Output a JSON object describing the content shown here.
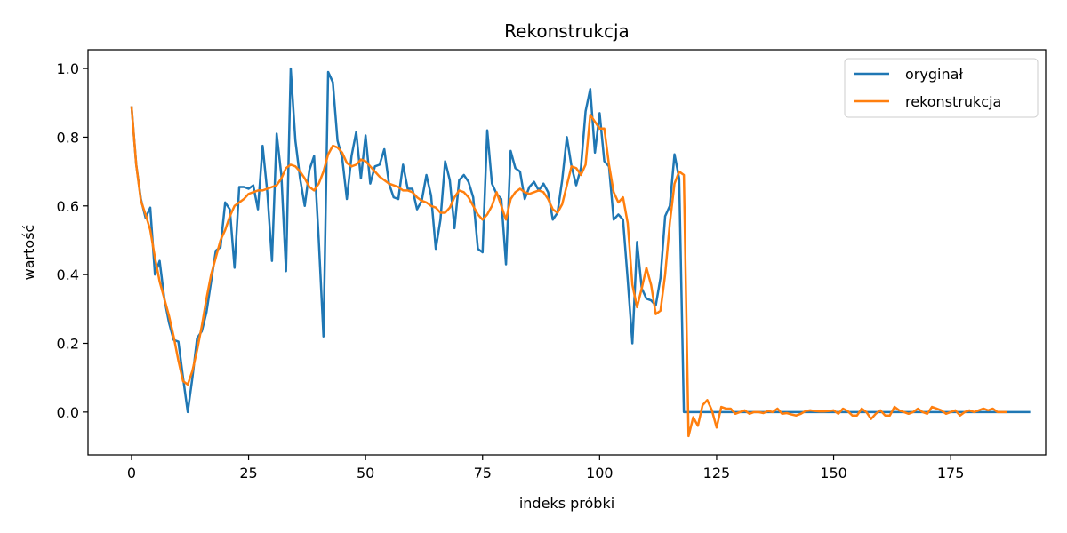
{
  "chart_data": {
    "type": "line",
    "title": "Rekonstrukcja",
    "xlabel": "indeks próbki",
    "ylabel": "wartość",
    "xlim": [
      -9.3,
      195.3
    ],
    "ylim": [
      -0.1245,
      1.0545
    ],
    "xticks": [
      0,
      25,
      50,
      75,
      100,
      125,
      150,
      175
    ],
    "yticks": [
      0.0,
      0.2,
      0.4,
      0.6,
      0.8,
      1.0
    ],
    "ytick_labels": [
      "0.0",
      "0.2",
      "0.4",
      "0.6",
      "0.8",
      "1.0"
    ],
    "grid": false,
    "legend": "top-right",
    "series": [
      {
        "name": "oryginał",
        "color": "#1f77b4",
        "values": [
          0.89,
          0.72,
          0.62,
          0.565,
          0.595,
          0.4,
          0.44,
          0.33,
          0.26,
          0.21,
          0.205,
          0.1,
          0.0,
          0.1,
          0.215,
          0.235,
          0.29,
          0.38,
          0.47,
          0.48,
          0.61,
          0.59,
          0.42,
          0.655,
          0.655,
          0.65,
          0.66,
          0.59,
          0.775,
          0.64,
          0.44,
          0.81,
          0.69,
          0.41,
          1.0,
          0.79,
          0.68,
          0.6,
          0.705,
          0.745,
          0.5,
          0.22,
          0.99,
          0.96,
          0.79,
          0.74,
          0.62,
          0.745,
          0.815,
          0.68,
          0.805,
          0.665,
          0.715,
          0.72,
          0.765,
          0.665,
          0.625,
          0.62,
          0.72,
          0.65,
          0.65,
          0.59,
          0.615,
          0.69,
          0.63,
          0.475,
          0.56,
          0.73,
          0.675,
          0.535,
          0.675,
          0.69,
          0.67,
          0.625,
          0.475,
          0.465,
          0.82,
          0.665,
          0.635,
          0.62,
          0.43,
          0.76,
          0.71,
          0.7,
          0.62,
          0.655,
          0.67,
          0.645,
          0.665,
          0.64,
          0.56,
          0.58,
          0.675,
          0.8,
          0.715,
          0.66,
          0.71,
          0.875,
          0.94,
          0.755,
          0.87,
          0.73,
          0.715,
          0.56,
          0.575,
          0.56,
          0.385,
          0.2,
          0.495,
          0.36,
          0.33,
          0.325,
          0.31,
          0.39,
          0.57,
          0.6,
          0.75,
          0.68,
          0.0,
          0.0,
          0.0,
          0.0,
          0.0,
          0.0,
          0.0,
          0.0,
          0.0,
          0.0,
          0.0,
          0.0,
          0.0,
          0.0,
          0.0,
          0.0,
          0.0,
          0.0,
          0.0,
          0.0,
          0.0,
          0.0,
          0.0,
          0.0,
          0.0,
          0.0,
          0.0,
          0.0,
          0.0,
          0.0,
          0.0,
          0.0,
          0.0,
          0.0,
          0.0,
          0.0,
          0.0,
          0.0,
          0.0,
          0.0,
          0.0,
          0.0,
          0.0,
          0.0,
          0.0,
          0.0,
          0.0,
          0.0,
          0.0,
          0.0,
          0.0,
          0.0,
          0.0,
          0.0,
          0.0,
          0.0,
          0.0,
          0.0,
          0.0,
          0.0,
          0.0,
          0.0,
          0.0,
          0.0,
          0.0,
          0.0,
          0.0,
          0.0,
          0.0,
          0.0,
          0.0,
          0.0,
          0.0,
          0.0,
          0.0
        ]
      },
      {
        "name": "rekonstrukcja",
        "color": "#ff7f0e",
        "values": [
          0.89,
          0.72,
          0.615,
          0.575,
          0.53,
          0.45,
          0.38,
          0.33,
          0.28,
          0.22,
          0.15,
          0.09,
          0.08,
          0.12,
          0.18,
          0.25,
          0.33,
          0.4,
          0.45,
          0.5,
          0.53,
          0.57,
          0.6,
          0.61,
          0.62,
          0.635,
          0.64,
          0.645,
          0.645,
          0.65,
          0.655,
          0.66,
          0.68,
          0.71,
          0.72,
          0.715,
          0.7,
          0.68,
          0.655,
          0.645,
          0.665,
          0.7,
          0.75,
          0.775,
          0.77,
          0.755,
          0.725,
          0.715,
          0.72,
          0.735,
          0.73,
          0.715,
          0.7,
          0.685,
          0.675,
          0.665,
          0.66,
          0.655,
          0.645,
          0.645,
          0.64,
          0.625,
          0.615,
          0.61,
          0.6,
          0.595,
          0.58,
          0.58,
          0.595,
          0.625,
          0.645,
          0.64,
          0.625,
          0.6,
          0.575,
          0.56,
          0.575,
          0.6,
          0.64,
          0.6,
          0.56,
          0.62,
          0.64,
          0.65,
          0.64,
          0.635,
          0.64,
          0.645,
          0.64,
          0.62,
          0.59,
          0.58,
          0.605,
          0.66,
          0.715,
          0.71,
          0.69,
          0.72,
          0.865,
          0.845,
          0.825,
          0.825,
          0.72,
          0.64,
          0.61,
          0.625,
          0.55,
          0.37,
          0.305,
          0.36,
          0.42,
          0.37,
          0.285,
          0.295,
          0.4,
          0.55,
          0.665,
          0.7,
          0.69,
          -0.07,
          -0.015,
          -0.04,
          0.02,
          0.035,
          0.005,
          -0.045,
          0.015,
          0.01,
          0.01,
          -0.005,
          0.0,
          0.005,
          -0.005,
          0.0,
          0.0,
          -0.003,
          0.003,
          0.0,
          0.01,
          -0.005,
          -0.003,
          -0.007,
          -0.01,
          -0.005,
          0.003,
          0.005,
          0.003,
          0.002,
          0.002,
          0.003,
          0.005,
          -0.005,
          0.01,
          0.003,
          -0.01,
          -0.01,
          0.01,
          0.0,
          -0.02,
          -0.005,
          0.005,
          -0.01,
          -0.01,
          0.015,
          0.005,
          0.0,
          -0.005,
          0.0,
          0.01,
          0.0,
          -0.005,
          0.015,
          0.01,
          0.005,
          -0.005,
          0.0,
          0.005,
          -0.01,
          0.0,
          0.005,
          0.0,
          0.005,
          0.01,
          0.005,
          0.01,
          0.0,
          0.0,
          0.0
        ]
      }
    ]
  }
}
